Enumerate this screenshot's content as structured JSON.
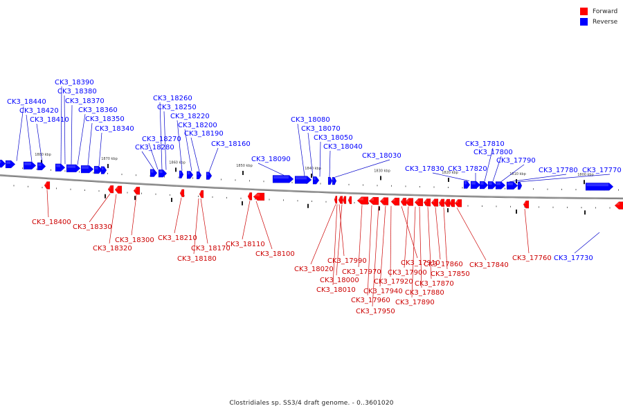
{
  "caption": "Clostridiales sp. SS3/4 draft genome. - 0..3601020",
  "legend": [
    {
      "label": "Forward",
      "color": "#ff0000"
    },
    {
      "label": "Reverse",
      "color": "#0000ff"
    }
  ],
  "colors": {
    "forward": "#ff0000",
    "reverse": "#0000ff",
    "backbone": "#808080",
    "leader": "#cc0000",
    "leader_rev": "#0000cc"
  },
  "kbp_marks": [
    "1880 kbp",
    "1870 kbp",
    "1860 kbp",
    "1850 kbp",
    "1840 kbp",
    "1830 kbp",
    "1820 kbp",
    "1810 kbp",
    "1800 kbp"
  ],
  "reverse_genes": [
    "CK3_18440",
    "CK3_18420",
    "CK3_18410",
    "CK3_18390",
    "CK3_18380",
    "CK3_18370",
    "CK3_18360",
    "CK3_18350",
    "CK3_18340",
    "CK3_18280",
    "CK3_18270",
    "CK3_18260",
    "CK3_18250",
    "CK3_18220",
    "CK3_18200",
    "CK3_18190",
    "CK3_18160",
    "CK3_18090",
    "CK3_18080",
    "CK3_18070",
    "CK3_18050",
    "CK3_18040",
    "CK3_18030",
    "CK3_17830",
    "CK3_17820",
    "CK3_17810",
    "CK3_17800",
    "CK3_17790",
    "CK3_17780",
    "CK3_17770",
    "CK3_17730"
  ],
  "forward_genes": [
    "CK3_18400",
    "CK3_18330",
    "CK3_18320",
    "CK3_18300",
    "CK3_18210",
    "CK3_18170",
    "CK3_18180",
    "CK3_18110",
    "CK3_18100",
    "CK3_18020",
    "CK3_17990",
    "CK3_18000",
    "CK3_18010",
    "CK3_17970",
    "CK3_17960",
    "CK3_17950",
    "CK3_17940",
    "CK3_17920",
    "CK3_17910",
    "CK3_17900",
    "CK3_17890",
    "CK3_17880",
    "CK3_17870",
    "CK3_17860",
    "CK3_17850",
    "CK3_17840",
    "CK3_17760"
  ]
}
